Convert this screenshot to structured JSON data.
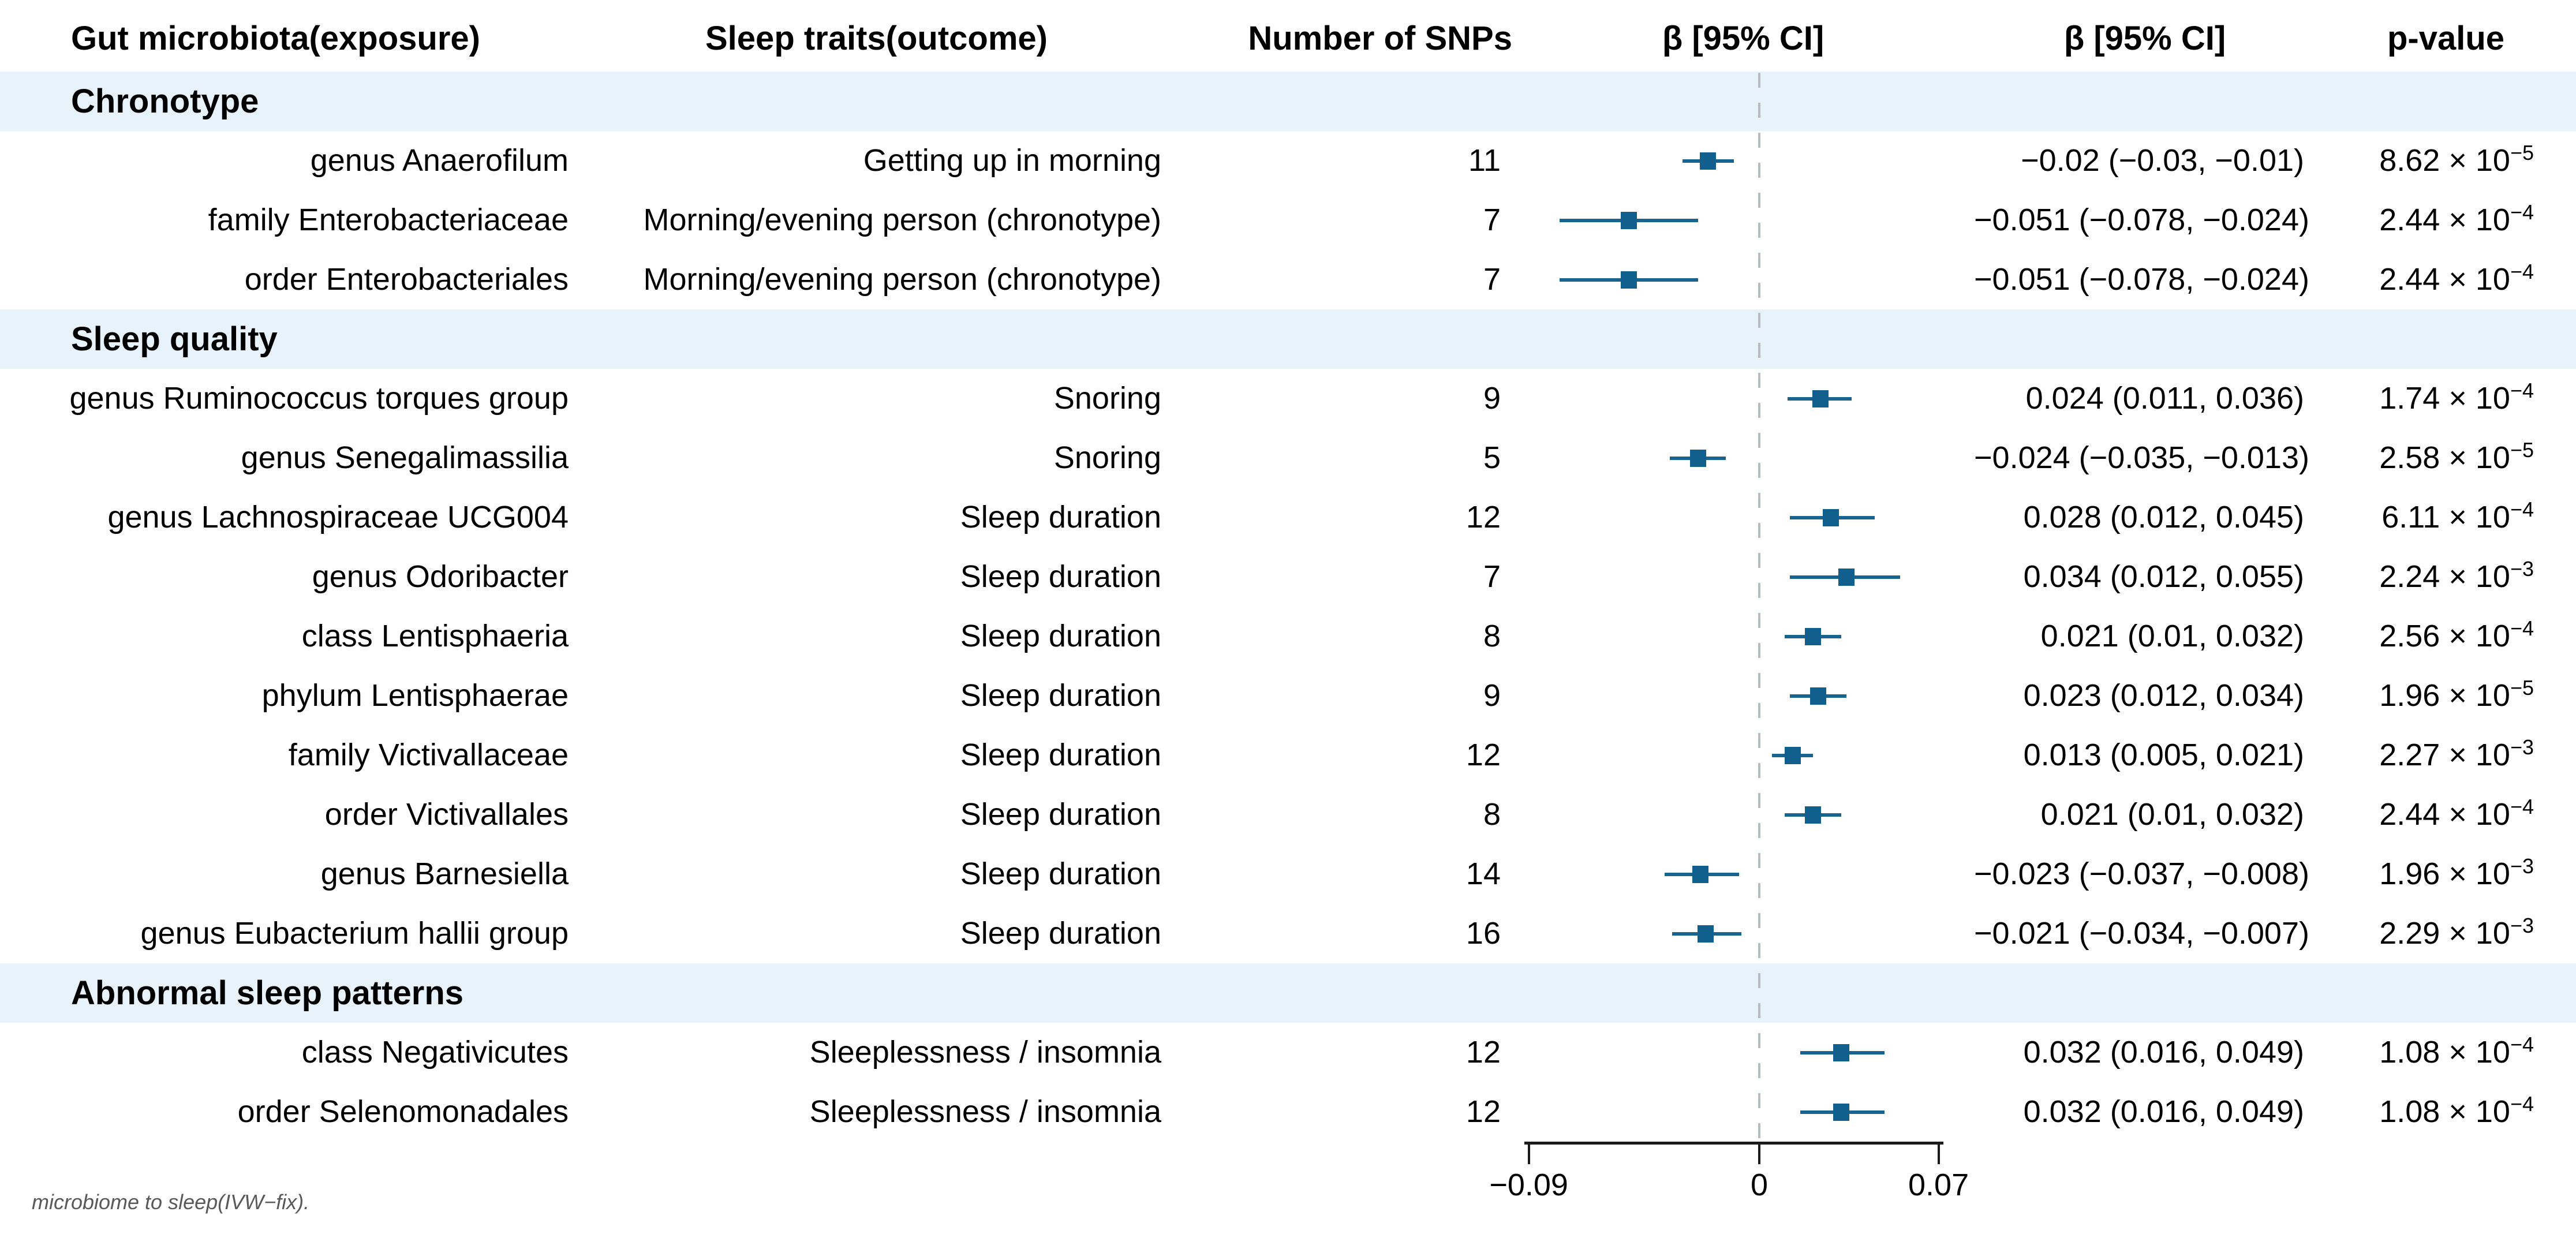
{
  "columns": [
    "Gut microbiota(exposure)",
    "Sleep traits(outcome)",
    "Number of SNPs",
    "β [95% CI]",
    "β [95% CI]",
    "p-value"
  ],
  "footnote": "microbiome to sleep(IVW−fix).",
  "colors": {
    "marker": "#115f8c",
    "whisker": "#19638f",
    "section_band": "#e8f2fb",
    "dashed_zero_line": "#b6bcc1",
    "axis": "#1a1a1a",
    "footnote_text": "#595959",
    "text": "#000000"
  },
  "axis": {
    "tick_labels": [
      "−0.09",
      "0",
      "0.07"
    ],
    "tick_values": [
      -0.09,
      0,
      0.07
    ]
  },
  "sections": [
    {
      "label": "Chronotype",
      "rows": [
        {
          "exposure": "genus Anaerofilum",
          "outcome": "Getting up in morning",
          "snps": "11",
          "beta_ci_text": "−0.02 (−0.03, −0.01)",
          "p_base": "8.62 × 10",
          "p_exp": "−5"
        },
        {
          "exposure": "family Enterobacteriaceae",
          "outcome": "Morning/evening person (chronotype)",
          "snps": "7",
          "beta_ci_text": "−0.051 (−0.078, −0.024)",
          "p_base": "2.44 × 10",
          "p_exp": "−4"
        },
        {
          "exposure": "order Enterobacteriales",
          "outcome": "Morning/evening person (chronotype)",
          "snps": "7",
          "beta_ci_text": "−0.051 (−0.078, −0.024)",
          "p_base": "2.44 × 10",
          "p_exp": "−4"
        }
      ]
    },
    {
      "label": "Sleep quality",
      "rows": [
        {
          "exposure": "genus Ruminococcus torques group",
          "outcome": "Snoring",
          "snps": "9",
          "beta_ci_text": "0.024 (0.011, 0.036)",
          "p_base": "1.74 × 10",
          "p_exp": "−4"
        },
        {
          "exposure": "genus Senegalimassilia",
          "outcome": "Snoring",
          "snps": "5",
          "beta_ci_text": "−0.024 (−0.035, −0.013)",
          "p_base": "2.58 × 10",
          "p_exp": "−5"
        },
        {
          "exposure": "genus Lachnospiraceae UCG004",
          "outcome": "Sleep duration",
          "snps": "12",
          "beta_ci_text": "0.028 (0.012, 0.045)",
          "p_base": "6.11 × 10",
          "p_exp": "−4"
        },
        {
          "exposure": "genus Odoribacter",
          "outcome": "Sleep duration",
          "snps": "7",
          "beta_ci_text": "0.034 (0.012, 0.055)",
          "p_base": "2.24 × 10",
          "p_exp": "−3"
        },
        {
          "exposure": "class Lentisphaeria",
          "outcome": "Sleep duration",
          "snps": "8",
          "beta_ci_text": "0.021 (0.01, 0.032)",
          "p_base": "2.56 × 10",
          "p_exp": "−4"
        },
        {
          "exposure": "phylum Lentisphaerae",
          "outcome": "Sleep duration",
          "snps": "9",
          "beta_ci_text": "0.023 (0.012, 0.034)",
          "p_base": "1.96 × 10",
          "p_exp": "−5"
        },
        {
          "exposure": "family Victivallaceae",
          "outcome": "Sleep duration",
          "snps": "12",
          "beta_ci_text": "0.013 (0.005, 0.021)",
          "p_base": "2.27 × 10",
          "p_exp": "−3"
        },
        {
          "exposure": "order Victivallales",
          "outcome": "Sleep duration",
          "snps": "8",
          "beta_ci_text": "0.021 (0.01, 0.032)",
          "p_base": "2.44 × 10",
          "p_exp": "−4"
        },
        {
          "exposure": "genus Barnesiella",
          "outcome": "Sleep duration",
          "snps": "14",
          "beta_ci_text": "−0.023 (−0.037, −0.008)",
          "p_base": "1.96 × 10",
          "p_exp": "−3"
        },
        {
          "exposure": "genus Eubacterium hallii group",
          "outcome": "Sleep duration",
          "snps": "16",
          "beta_ci_text": "−0.021 (−0.034, −0.007)",
          "p_base": "2.29 × 10",
          "p_exp": "−3"
        }
      ]
    },
    {
      "label": "Abnormal sleep patterns",
      "rows": [
        {
          "exposure": "class Negativicutes",
          "outcome": "Sleeplessness / insomnia",
          "snps": "12",
          "beta_ci_text": "0.032 (0.016, 0.049)",
          "p_base": "1.08 × 10",
          "p_exp": "−4"
        },
        {
          "exposure": "order Selenomonadales",
          "outcome": "Sleeplessness / insomnia",
          "snps": "12",
          "beta_ci_text": "0.032 (0.016, 0.049)",
          "p_base": "1.08 × 10",
          "p_exp": "−4"
        }
      ]
    }
  ],
  "chart_data": {
    "type": "scatter",
    "subtype": "forest",
    "title": "β [95% CI]",
    "xlabel": "β",
    "xlim": [
      -0.09,
      0.07
    ],
    "x_ticks": [
      -0.09,
      0,
      0.07
    ],
    "zero_line": 0,
    "grid": false,
    "legend": "none",
    "rows": [
      {
        "label": "genus Anaerofilum",
        "beta": -0.02,
        "ci_low": -0.03,
        "ci_high": -0.01
      },
      {
        "label": "family Enterobacteriaceae",
        "beta": -0.051,
        "ci_low": -0.078,
        "ci_high": -0.024
      },
      {
        "label": "order Enterobacteriales",
        "beta": -0.051,
        "ci_low": -0.078,
        "ci_high": -0.024
      },
      {
        "label": "genus Ruminococcus torques group",
        "beta": 0.024,
        "ci_low": 0.011,
        "ci_high": 0.036
      },
      {
        "label": "genus Senegalimassilia",
        "beta": -0.024,
        "ci_low": -0.035,
        "ci_high": -0.013
      },
      {
        "label": "genus Lachnospiraceae UCG004",
        "beta": 0.028,
        "ci_low": 0.012,
        "ci_high": 0.045
      },
      {
        "label": "genus Odoribacter",
        "beta": 0.034,
        "ci_low": 0.012,
        "ci_high": 0.055
      },
      {
        "label": "class Lentisphaeria",
        "beta": 0.021,
        "ci_low": 0.01,
        "ci_high": 0.032
      },
      {
        "label": "phylum Lentisphaerae",
        "beta": 0.023,
        "ci_low": 0.012,
        "ci_high": 0.034
      },
      {
        "label": "family Victivallaceae",
        "beta": 0.013,
        "ci_low": 0.005,
        "ci_high": 0.021
      },
      {
        "label": "order Victivallales",
        "beta": 0.021,
        "ci_low": 0.01,
        "ci_high": 0.032
      },
      {
        "label": "genus Barnesiella",
        "beta": -0.023,
        "ci_low": -0.037,
        "ci_high": -0.008
      },
      {
        "label": "genus Eubacterium hallii group",
        "beta": -0.021,
        "ci_low": -0.034,
        "ci_high": -0.007
      },
      {
        "label": "class Negativicutes",
        "beta": 0.032,
        "ci_low": 0.016,
        "ci_high": 0.049
      },
      {
        "label": "order Selenomonadales",
        "beta": 0.032,
        "ci_low": 0.016,
        "ci_high": 0.049
      }
    ]
  }
}
